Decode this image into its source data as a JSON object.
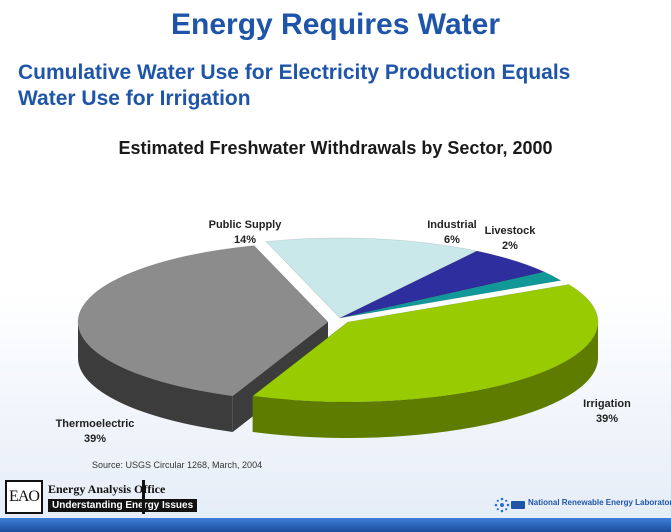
{
  "slide": {
    "title": "Energy Requires Water",
    "subtitle_line1": "Cumulative Water Use for Electricity Production Equals",
    "subtitle_line2": "Water Use for Irrigation",
    "source": "Source: USGS Circular 1268, March, 2004"
  },
  "chart_data": {
    "type": "pie",
    "title": "Estimated Freshwater Withdrawals by Sector, 2000",
    "slices": [
      {
        "label": "Irrigation",
        "value": 39,
        "value_label": "39%",
        "color": "#99cc00",
        "side_color": "#5e7d00"
      },
      {
        "label": "Thermoelectric",
        "value": 39,
        "value_label": "39%",
        "color": "#8c8c8c",
        "side_color": "#3c3c3c"
      },
      {
        "label": "Public Supply",
        "value": 14,
        "value_label": "14%",
        "color": "#c8e8ea",
        "side_color": "#7fa3a5"
      },
      {
        "label": "Industrial",
        "value": 6,
        "value_label": "6%",
        "color": "#2e2e9e",
        "side_color": "#1a1a5e"
      },
      {
        "label": "Livestock",
        "value": 2,
        "value_label": "2%",
        "color": "#119999",
        "side_color": "#0a5c5c"
      }
    ],
    "legend": "none"
  },
  "logos": {
    "eao_mark": "EAO",
    "eao_name": "Energy Analysis Office",
    "eao_tagline": "Understanding Energy Issues",
    "nrel_icon": "nrel-sunburst-icon",
    "nrel_name": "National Renewable Energy Laboratory"
  },
  "colors": {
    "title": "#1f55a8",
    "footer_bar": "#1b4e9e"
  }
}
